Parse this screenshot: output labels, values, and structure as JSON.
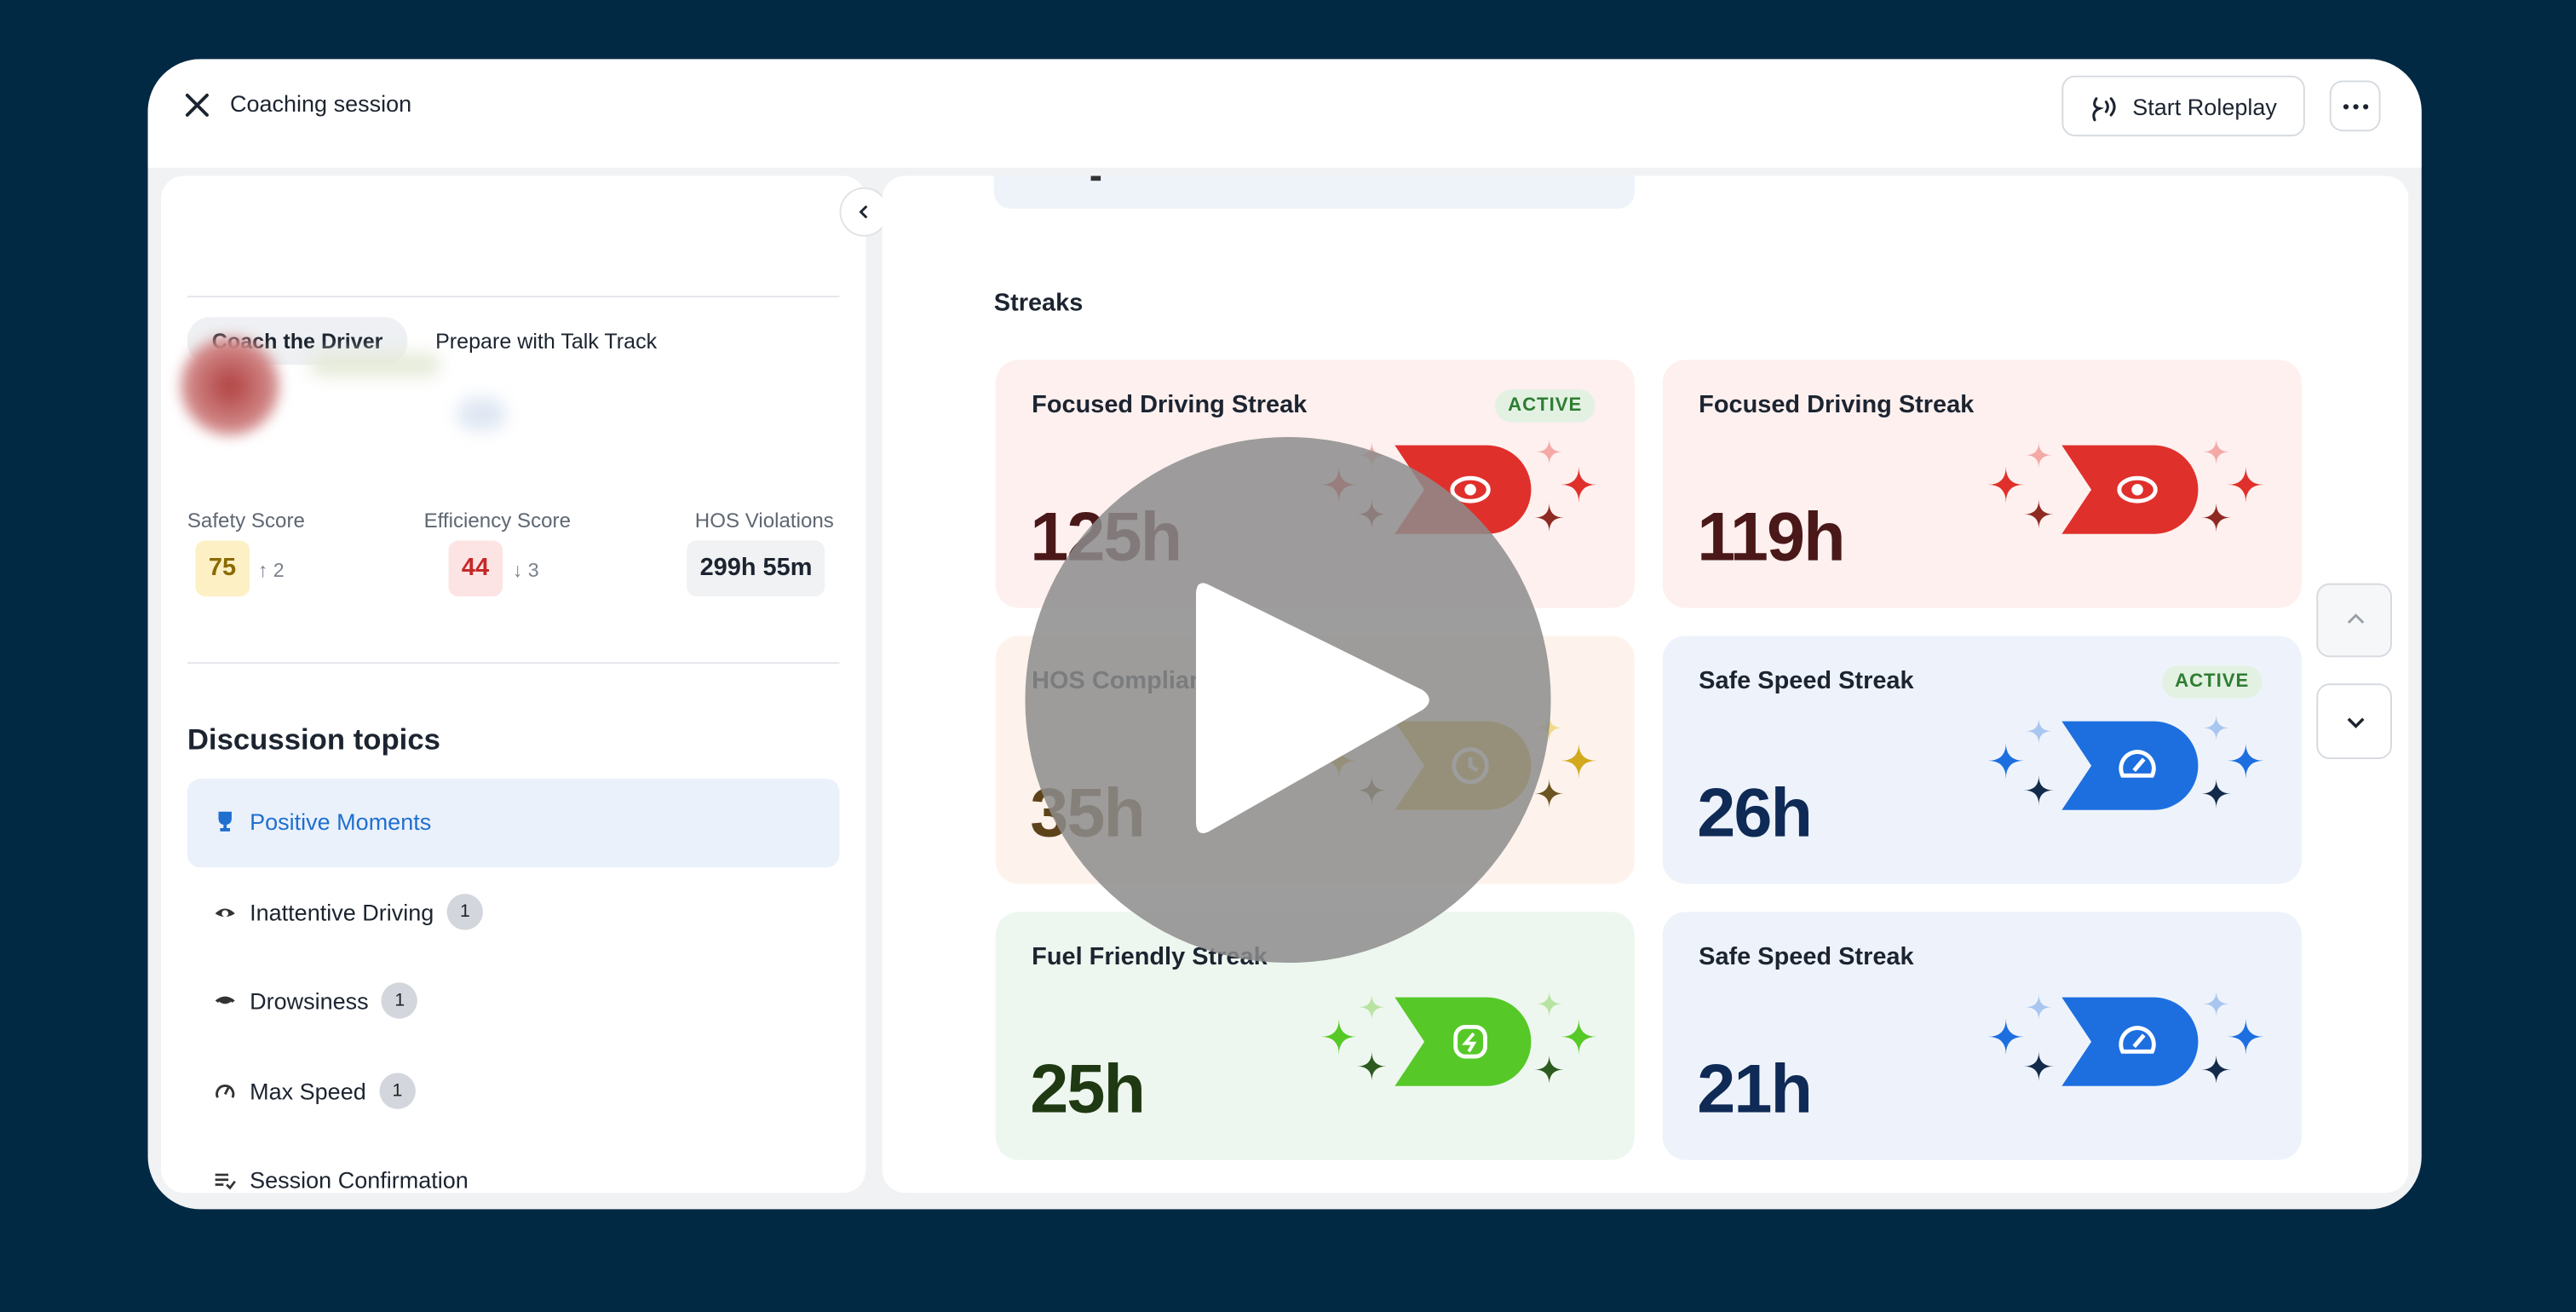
{
  "header": {
    "title": "Coaching session",
    "action": "Start Roleplay"
  },
  "tabs": [
    "Coach the Driver",
    "Prepare with Talk Track"
  ],
  "scores": [
    {
      "label": "Safety Score",
      "value": "75",
      "change": "↑ 2"
    },
    {
      "label": "Efficiency Score",
      "value": "44",
      "change": "↓ 3"
    },
    {
      "label": "HOS Violations",
      "value": "299h 55m"
    }
  ],
  "discussion": {
    "title": "Discussion topics",
    "topics": [
      {
        "label": "Positive Moments"
      },
      {
        "label": "Inattentive Driving",
        "count": 1
      },
      {
        "label": "Drowsiness",
        "count": 1
      },
      {
        "label": "Max Speed",
        "count": 1
      },
      {
        "label": "Session Confirmation"
      }
    ]
  },
  "streaks": {
    "title": "Streaks",
    "cards": [
      {
        "name": "Focused Driving Streak",
        "value": "125h",
        "badge": "ACTIVE",
        "theme": "red"
      },
      {
        "name": "Focused Driving Streak",
        "value": "119h",
        "theme": "red"
      },
      {
        "name": "HOS Compliance Streak",
        "value": "35h",
        "theme": "gold"
      },
      {
        "name": "Safe Speed Streak",
        "value": "26h",
        "badge": "ACTIVE",
        "theme": "blue"
      },
      {
        "name": "Fuel Friendly Streak",
        "value": "25h",
        "theme": "green"
      },
      {
        "name": "Safe Speed Streak",
        "value": "21h",
        "theme": "blue"
      }
    ]
  }
}
